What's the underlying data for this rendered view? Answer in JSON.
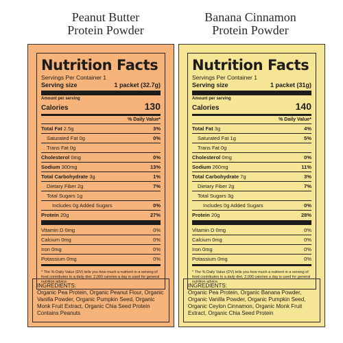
{
  "colors": {
    "left_panel": "#f6b47a",
    "right_panel": "#f5e595"
  },
  "panels": [
    {
      "title": "Peanut Butter\nProtein Powder",
      "heading": "Nutrition Facts",
      "servings": "Servings Per Container 1",
      "serving_size_label": "Serving size",
      "serving_size_value": "1 packet (32.7g)",
      "amount_per_serving": "Amount per serving",
      "calories_label": "Calories",
      "calories_value": "130",
      "daily_value_head": "% Daily Value*",
      "nutrients": [
        {
          "name": "Total Fat",
          "amount": "2.5g",
          "dv": "3%",
          "bold": true,
          "indent": 0
        },
        {
          "name": "Saturated Fat",
          "amount": "0g",
          "dv": "0%",
          "bold": false,
          "indent": 1
        },
        {
          "name": "Trans Fat",
          "amount": "0g",
          "dv": "",
          "bold": false,
          "indent": 1
        },
        {
          "name": "Cholesterol",
          "amount": "0mg",
          "dv": "0%",
          "bold": true,
          "indent": 0
        },
        {
          "name": "Sodium",
          "amount": "300mg",
          "dv": "13%",
          "bold": true,
          "indent": 0
        },
        {
          "name": "Total Carbohydrate",
          "amount": "3g",
          "dv": "1%",
          "bold": true,
          "indent": 0
        },
        {
          "name": "Dietary Fiber",
          "amount": "2g",
          "dv": "7%",
          "bold": false,
          "indent": 1
        },
        {
          "name": "Total Sugars",
          "amount": "1g",
          "dv": "",
          "bold": false,
          "indent": 1
        },
        {
          "name": "Includes 0g Added Sugars",
          "amount": "",
          "dv": "0%",
          "bold": false,
          "indent": 2
        },
        {
          "name": "Protein",
          "amount": "20g",
          "dv": "27%",
          "bold": true,
          "indent": 0
        }
      ],
      "vitamins": [
        {
          "name": "Vitamin D",
          "amount": "0mg",
          "dv": "0%"
        },
        {
          "name": "Calcium",
          "amount": "0mg",
          "dv": "0%"
        },
        {
          "name": "Iron",
          "amount": "0mg",
          "dv": "0%"
        },
        {
          "name": "Potassium",
          "amount": "0mg",
          "dv": "0%"
        }
      ],
      "footnote": "* The % Daily Value (DV) tells you how much a nutrient in a serving of food contributes to a daily diet. 2,000 calories a day is used for general nutrition advice.",
      "ingredients": "INGREDIENTS:\nOrganic Pea Protein, Organic Peanut Flour, Organic Vanilla Powder, Organic Pumpkin Seed, Organic Monk Fruit Extract, Organic Chia Seed Protein\nContains Peanuts"
    },
    {
      "title": "Banana Cinnamon\nProtein Powder",
      "heading": "Nutrition Facts",
      "servings": "Servings Per Container 1",
      "serving_size_label": "Serving size",
      "serving_size_value": "1 packet (31g)",
      "amount_per_serving": "Amount per serving",
      "calories_label": "Calories",
      "calories_value": "140",
      "daily_value_head": "% Daily Value*",
      "nutrients": [
        {
          "name": "Total Fat",
          "amount": "3g",
          "dv": "4%",
          "bold": true,
          "indent": 0
        },
        {
          "name": "Saturated Fat",
          "amount": "1g",
          "dv": "5%",
          "bold": false,
          "indent": 1
        },
        {
          "name": "Trans Fat",
          "amount": "0g",
          "dv": "",
          "bold": false,
          "indent": 1
        },
        {
          "name": "Cholesterol",
          "amount": "0mg",
          "dv": "0%",
          "bold": true,
          "indent": 0
        },
        {
          "name": "Sodium",
          "amount": "260mg",
          "dv": "11%",
          "bold": true,
          "indent": 0
        },
        {
          "name": "Total Carbohydrate",
          "amount": "7g",
          "dv": "3%",
          "bold": true,
          "indent": 0
        },
        {
          "name": "Dietary Fiber",
          "amount": "2g",
          "dv": "7%",
          "bold": false,
          "indent": 1
        },
        {
          "name": "Total Sugars",
          "amount": "3g",
          "dv": "",
          "bold": false,
          "indent": 1
        },
        {
          "name": "Includes 0g Added Sugars",
          "amount": "",
          "dv": "0%",
          "bold": false,
          "indent": 2
        },
        {
          "name": "Protein",
          "amount": "20g",
          "dv": "28%",
          "bold": true,
          "indent": 0
        }
      ],
      "vitamins": [
        {
          "name": "Vitamin D",
          "amount": "0mg",
          "dv": "0%"
        },
        {
          "name": "Calcium",
          "amount": "0mg",
          "dv": "0%"
        },
        {
          "name": "Iron",
          "amount": "0mg",
          "dv": "0%"
        },
        {
          "name": "Potassium",
          "amount": "0mg",
          "dv": "0%"
        }
      ],
      "footnote": "* The % Daily Value (DV) tells you how much a nutrient in a serving of food contributes to a daily diet. 2,000 calories a day is used for general nutrition advice.",
      "ingredients": "INGREDIENTS:\nOrganic Pea Protein, Organic Banana Powder, Organic Vanilla Powder, Organic Pumpkin Seed, Organic Ceylon Cinnamon, Organic Monk Fruit Extract, Organic Chia Seed Protein"
    }
  ]
}
